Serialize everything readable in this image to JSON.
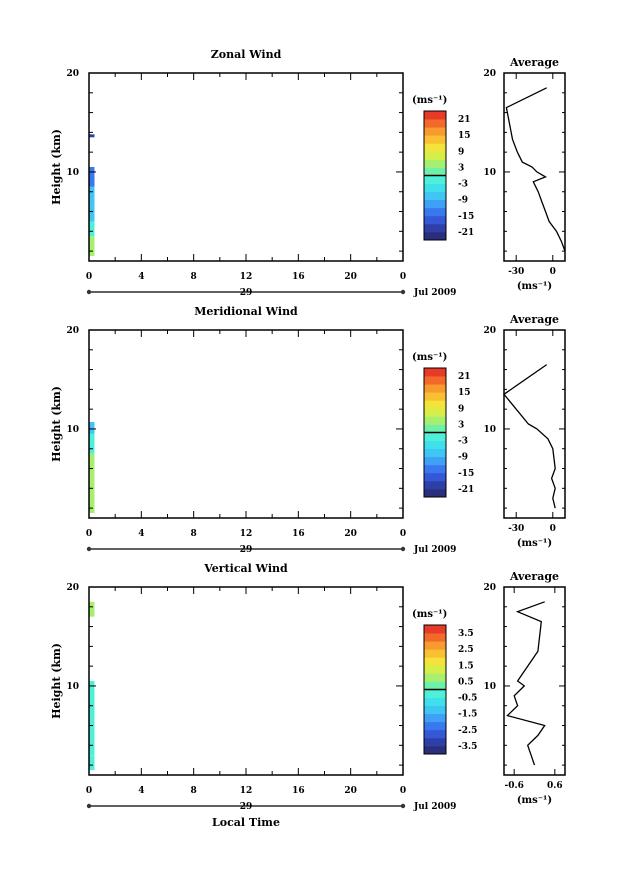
{
  "panels": [
    {
      "id": "zonal",
      "title": "Zonal Wind",
      "ylabel": "Height (km)",
      "yticks": [
        "20",
        "10"
      ],
      "xticks": [
        "0",
        "4",
        "8",
        "12",
        "16",
        "20",
        "0"
      ],
      "day_label": "29",
      "month_year": "Jul 2009",
      "colorbar_unit": "(ms⁻¹)",
      "colorbar_ticks": [
        "21",
        "15",
        "9",
        "3",
        "-3",
        "-9",
        "-15",
        "-21"
      ],
      "colorbar_range": [
        -24,
        24
      ],
      "avg_title": "Average",
      "avg_yticks": [
        "20",
        "10"
      ],
      "avg_xticks": [
        "-30",
        "0"
      ],
      "avg_xrange": [
        -40,
        10
      ],
      "avg_unit": "(ms⁻¹)"
    },
    {
      "id": "meridional",
      "title": "Meridional Wind",
      "ylabel": "Height (km)",
      "yticks": [
        "20",
        "10"
      ],
      "xticks": [
        "0",
        "4",
        "8",
        "12",
        "16",
        "20",
        "0"
      ],
      "day_label": "29",
      "month_year": "Jul 2009",
      "colorbar_unit": "(ms⁻¹)",
      "colorbar_ticks": [
        "21",
        "15",
        "9",
        "3",
        "-3",
        "-9",
        "-15",
        "-21"
      ],
      "colorbar_range": [
        -24,
        24
      ],
      "avg_title": "Average",
      "avg_yticks": [
        "20",
        "10"
      ],
      "avg_xticks": [
        "-30",
        "0"
      ],
      "avg_xrange": [
        -40,
        10
      ],
      "avg_unit": "(ms⁻¹)"
    },
    {
      "id": "vertical",
      "title": "Vertical Wind",
      "ylabel": "Height (km)",
      "yticks": [
        "20",
        "10"
      ],
      "xticks": [
        "0",
        "4",
        "8",
        "12",
        "16",
        "20",
        "0"
      ],
      "day_label": "29",
      "month_year": "Jul 2009",
      "xlabel": "Local Time",
      "colorbar_unit": "(ms⁻¹)",
      "colorbar_ticks": [
        "3.5",
        "2.5",
        "1.5",
        "0.5",
        "-0.5",
        "-1.5",
        "-2.5",
        "-3.5"
      ],
      "colorbar_range": [
        -4,
        4
      ],
      "avg_title": "Average",
      "avg_yticks": [
        "20",
        "10"
      ],
      "avg_xticks": [
        "-0.6",
        "0.6"
      ],
      "avg_xrange": [
        -0.9,
        0.9
      ],
      "avg_unit": "(ms⁻¹)"
    }
  ],
  "colors": {
    "colorbar": [
      "#2b2e7a",
      "#2e3fa8",
      "#3458d6",
      "#3a78f0",
      "#3fa0f5",
      "#3fc6f3",
      "#3fe0ec",
      "#4ef0d8",
      "#6ff0a8",
      "#a6ef6f",
      "#d6ee4a",
      "#f3e33a",
      "#f8c032",
      "#f89a2e",
      "#f26a2a",
      "#e83a28"
    ]
  },
  "chart_data": [
    {
      "type": "heatmap",
      "title": "Zonal Wind",
      "ylabel": "Height (km)",
      "xlim": [
        0,
        24
      ],
      "ylim": [
        1,
        20
      ],
      "cells": [
        {
          "t": 0,
          "h0": 1.5,
          "h1": 3.5,
          "v": 3
        },
        {
          "t": 0,
          "h0": 3.5,
          "h1": 5,
          "v": -3
        },
        {
          "t": 0,
          "h0": 5,
          "h1": 6.5,
          "v": -9
        },
        {
          "t": 0,
          "h0": 6.5,
          "h1": 8.5,
          "v": -9
        },
        {
          "t": 0,
          "h0": 8.5,
          "h1": 10.5,
          "v": -15
        },
        {
          "t": 0,
          "h0": 13.5,
          "h1": 13.8,
          "v": -21
        }
      ],
      "average_profile": {
        "xlabel": "(ms⁻¹)",
        "height": [
          2,
          3,
          4,
          5,
          6,
          7,
          8,
          9,
          9.5,
          10,
          10.5,
          11,
          12,
          13.3,
          16.5,
          18.5
        ],
        "value": [
          10,
          7,
          3,
          -3,
          -6,
          -9,
          -12,
          -16,
          -6,
          -13,
          -17,
          -25,
          -29,
          -33,
          -38,
          -5
        ]
      }
    },
    {
      "type": "heatmap",
      "title": "Meridional Wind",
      "ylabel": "Height (km)",
      "xlim": [
        0,
        24
      ],
      "ylim": [
        1,
        20
      ],
      "cells": [
        {
          "t": 0,
          "h0": 1.5,
          "h1": 5,
          "v": 3
        },
        {
          "t": 0,
          "h0": 5,
          "h1": 7.5,
          "v": 3
        },
        {
          "t": 0,
          "h0": 7.5,
          "h1": 9.5,
          "v": -3
        },
        {
          "t": 0,
          "h0": 9.5,
          "h1": 10.7,
          "v": -9
        }
      ],
      "average_profile": {
        "xlabel": "(ms⁻¹)",
        "height": [
          2,
          3,
          4,
          5,
          6,
          7,
          8,
          9,
          10,
          10.5,
          13.5,
          16.5
        ],
        "value": [
          2,
          0,
          2,
          -1,
          2,
          1,
          0,
          -4,
          -13,
          -20,
          -40,
          -5
        ]
      }
    },
    {
      "type": "heatmap",
      "title": "Vertical Wind",
      "ylabel": "Height (km)",
      "xlabel": "Local Time",
      "xlim": [
        0,
        24
      ],
      "ylim": [
        1,
        20
      ],
      "cells": [
        {
          "t": 0,
          "h0": 1.5,
          "h1": 3,
          "v": -0.5
        },
        {
          "t": 0,
          "h0": 3,
          "h1": 6,
          "v": -0.5
        },
        {
          "t": 0,
          "h0": 6,
          "h1": 10.5,
          "v": -0.5
        },
        {
          "t": 0,
          "h0": 17,
          "h1": 18.5,
          "v": 0.5
        }
      ],
      "average_profile": {
        "xlabel": "(ms⁻¹)",
        "height": [
          2,
          3,
          4,
          5,
          6,
          7,
          8,
          9,
          10,
          10.5,
          13.5,
          16.5,
          17.5,
          18.5
        ],
        "value": [
          0,
          -0.1,
          -0.2,
          0.1,
          0.3,
          -0.8,
          -0.5,
          -0.6,
          -0.3,
          -0.5,
          0.1,
          0.2,
          -0.5,
          0.3
        ]
      }
    }
  ]
}
